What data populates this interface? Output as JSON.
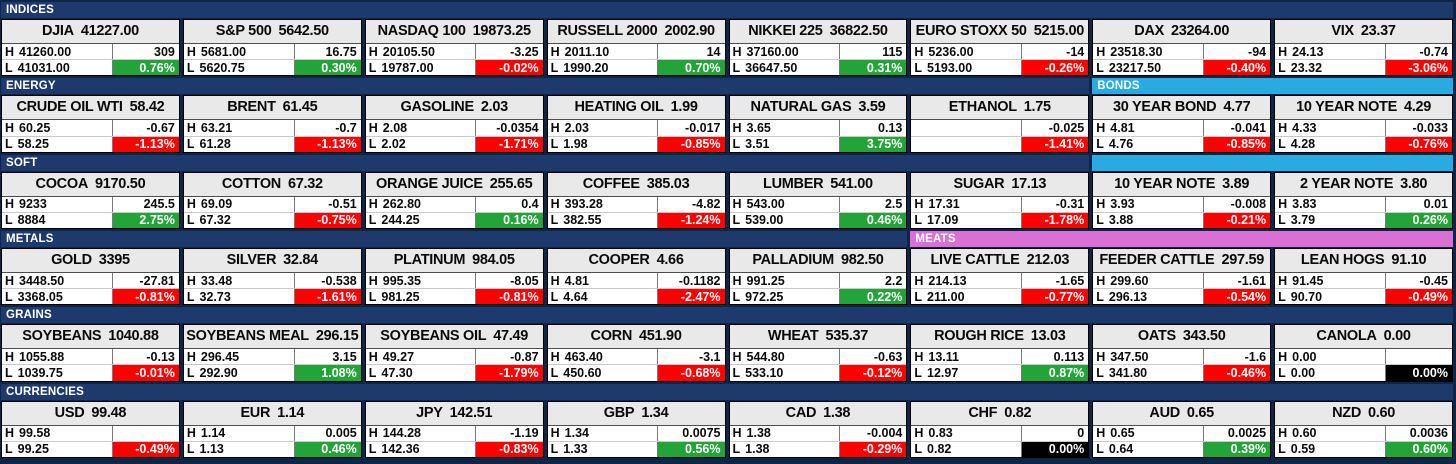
{
  "labels": {
    "high": "H",
    "low": "L"
  },
  "colors": {
    "navy": "#1E3A6D",
    "cyan": "#29ABE2",
    "pink": "#DA6FD6",
    "green": "#23A438",
    "red": "#FE0000",
    "black": "#000000"
  },
  "chart_data": {
    "type": "table",
    "title": "Futures market quote board",
    "columns_per_row": 8,
    "row_fields": [
      "name",
      "last",
      "high",
      "high_change",
      "low",
      "low_change_pct"
    ],
    "sections": [
      {
        "bars": [
          {
            "label": "INDICES",
            "color": "navy",
            "cols": 8
          }
        ],
        "cells": [
          {
            "name": "DJIA",
            "last": "41227.00",
            "high": "41260.00",
            "high_change": "309",
            "low": "41031.00",
            "low_change_pct": "0.76%",
            "pct_color": "green"
          },
          {
            "name": "S&P 500",
            "last": "5642.50",
            "high": "5681.00",
            "high_change": "16.75",
            "low": "5620.75",
            "low_change_pct": "0.30%",
            "pct_color": "green"
          },
          {
            "name": "NASDAQ 100",
            "last": "19873.25",
            "high": "20105.50",
            "high_change": "-3.25",
            "low": "19787.00",
            "low_change_pct": "-0.02%",
            "pct_color": "red"
          },
          {
            "name": "RUSSELL 2000",
            "last": "2002.90",
            "high": "2011.10",
            "high_change": "14",
            "low": "1990.20",
            "low_change_pct": "0.70%",
            "pct_color": "green"
          },
          {
            "name": "NIKKEI 225",
            "last": "36822.50",
            "high": "37160.00",
            "high_change": "115",
            "low": "36647.50",
            "low_change_pct": "0.31%",
            "pct_color": "green"
          },
          {
            "name": "EURO STOXX 50",
            "last": "5215.00",
            "high": "5236.00",
            "high_change": "-14",
            "low": "5193.00",
            "low_change_pct": "-0.26%",
            "pct_color": "red"
          },
          {
            "name": "DAX",
            "last": "23264.00",
            "high": "23518.30",
            "high_change": "-94",
            "low": "23217.50",
            "low_change_pct": "-0.40%",
            "pct_color": "red"
          },
          {
            "name": "VIX",
            "last": "23.37",
            "high": "24.13",
            "high_change": "-0.74",
            "low": "23.32",
            "low_change_pct": "-3.06%",
            "pct_color": "red"
          }
        ]
      },
      {
        "bars": [
          {
            "label": "ENERGY",
            "color": "navy",
            "cols": 6
          },
          {
            "label": "BONDS",
            "color": "cyan",
            "cols": 2
          }
        ],
        "cells": [
          {
            "name": "CRUDE OIL WTI",
            "last": "58.42",
            "high": "60.25",
            "high_change": "-0.67",
            "low": "58.25",
            "low_change_pct": "-1.13%",
            "pct_color": "red"
          },
          {
            "name": "BRENT",
            "last": "61.45",
            "high": "63.21",
            "high_change": "-0.7",
            "low": "61.28",
            "low_change_pct": "-1.13%",
            "pct_color": "red"
          },
          {
            "name": "GASOLINE",
            "last": "2.03",
            "high": "2.08",
            "high_change": "-0.0354",
            "low": "2.02",
            "low_change_pct": "-1.71%",
            "pct_color": "red"
          },
          {
            "name": "HEATING OIL",
            "last": "1.99",
            "high": "2.03",
            "high_change": "-0.017",
            "low": "1.98",
            "low_change_pct": "-0.85%",
            "pct_color": "red"
          },
          {
            "name": "NATURAL GAS",
            "last": "3.59",
            "high": "3.65",
            "high_change": "0.13",
            "low": "3.51",
            "low_change_pct": "3.75%",
            "pct_color": "green"
          },
          {
            "name": "ETHANOL",
            "last": "1.75",
            "high": "",
            "high_change": "-0.025",
            "low": "",
            "low_change_pct": "-1.41%",
            "pct_color": "red"
          },
          {
            "name": "30 YEAR BOND",
            "last": "4.77",
            "high": "4.81",
            "high_change": "-0.041",
            "low": "4.76",
            "low_change_pct": "-0.85%",
            "pct_color": "red"
          },
          {
            "name": "10 YEAR NOTE",
            "last": "4.29",
            "high": "4.33",
            "high_change": "-0.033",
            "low": "4.28",
            "low_change_pct": "-0.76%",
            "pct_color": "red"
          }
        ]
      },
      {
        "bars": [
          {
            "label": "SOFT",
            "color": "navy",
            "cols": 6
          },
          {
            "label": "",
            "color": "cyan",
            "cols": 2
          }
        ],
        "cells": [
          {
            "name": "COCOA",
            "last": "9170.50",
            "high": "9233",
            "high_change": "245.5",
            "low": "8884",
            "low_change_pct": "2.75%",
            "pct_color": "green"
          },
          {
            "name": "COTTON",
            "last": "67.32",
            "high": "69.09",
            "high_change": "-0.51",
            "low": "67.32",
            "low_change_pct": "-0.75%",
            "pct_color": "red"
          },
          {
            "name": "ORANGE JUICE",
            "last": "255.65",
            "high": "262.80",
            "high_change": "0.4",
            "low": "244.25",
            "low_change_pct": "0.16%",
            "pct_color": "green"
          },
          {
            "name": "COFFEE",
            "last": "385.03",
            "high": "393.28",
            "high_change": "-4.82",
            "low": "382.55",
            "low_change_pct": "-1.24%",
            "pct_color": "red"
          },
          {
            "name": "LUMBER",
            "last": "541.00",
            "high": "543.00",
            "high_change": "2.5",
            "low": "539.00",
            "low_change_pct": "0.46%",
            "pct_color": "green"
          },
          {
            "name": "SUGAR",
            "last": "17.13",
            "high": "17.31",
            "high_change": "-0.31",
            "low": "17.09",
            "low_change_pct": "-1.78%",
            "pct_color": "red"
          },
          {
            "name": "10 YEAR NOTE",
            "last": "3.89",
            "high": "3.93",
            "high_change": "-0.008",
            "low": "3.88",
            "low_change_pct": "-0.21%",
            "pct_color": "red"
          },
          {
            "name": "2 YEAR NOTE",
            "last": "3.80",
            "high": "3.83",
            "high_change": "0.01",
            "low": "3.79",
            "low_change_pct": "0.26%",
            "pct_color": "green"
          }
        ]
      },
      {
        "bars": [
          {
            "label": "METALS",
            "color": "navy",
            "cols": 5
          },
          {
            "label": "MEATS",
            "color": "pink",
            "cols": 3
          }
        ],
        "cells": [
          {
            "name": "GOLD",
            "last": "3395",
            "high": "3448.50",
            "high_change": "-27.81",
            "low": "3368.05",
            "low_change_pct": "-0.81%",
            "pct_color": "red"
          },
          {
            "name": "SILVER",
            "last": "32.84",
            "high": "33.48",
            "high_change": "-0.538",
            "low": "32.73",
            "low_change_pct": "-1.61%",
            "pct_color": "red"
          },
          {
            "name": "PLATINUM",
            "last": "984.05",
            "high": "995.35",
            "high_change": "-8.05",
            "low": "981.25",
            "low_change_pct": "-0.81%",
            "pct_color": "red"
          },
          {
            "name": "COOPER",
            "last": "4.66",
            "high": "4.81",
            "high_change": "-0.1182",
            "low": "4.64",
            "low_change_pct": "-2.47%",
            "pct_color": "red"
          },
          {
            "name": "PALLADIUM",
            "last": "982.50",
            "high": "991.25",
            "high_change": "2.2",
            "low": "972.25",
            "low_change_pct": "0.22%",
            "pct_color": "green"
          },
          {
            "name": "LIVE CATTLE",
            "last": "212.03",
            "high": "214.13",
            "high_change": "-1.65",
            "low": "211.00",
            "low_change_pct": "-0.77%",
            "pct_color": "red"
          },
          {
            "name": "FEEDER CATTLE",
            "last": "297.59",
            "high": "299.60",
            "high_change": "-1.61",
            "low": "296.13",
            "low_change_pct": "-0.54%",
            "pct_color": "red"
          },
          {
            "name": "LEAN HOGS",
            "last": "91.10",
            "high": "91.45",
            "high_change": "-0.45",
            "low": "90.70",
            "low_change_pct": "-0.49%",
            "pct_color": "red"
          }
        ]
      },
      {
        "bars": [
          {
            "label": "GRAINS",
            "color": "navy",
            "cols": 8
          }
        ],
        "cells": [
          {
            "name": "SOYBEANS",
            "last": "1040.88",
            "high": "1055.88",
            "high_change": "-0.13",
            "low": "1039.75",
            "low_change_pct": "-0.01%",
            "pct_color": "red"
          },
          {
            "name": "SOYBEANS MEAL",
            "last": "296.15",
            "high": "296.45",
            "high_change": "3.15",
            "low": "292.90",
            "low_change_pct": "1.08%",
            "pct_color": "green"
          },
          {
            "name": "SOYBEANS OIL",
            "last": "47.49",
            "high": "49.27",
            "high_change": "-0.87",
            "low": "47.30",
            "low_change_pct": "-1.79%",
            "pct_color": "red"
          },
          {
            "name": "CORN",
            "last": "451.90",
            "high": "463.40",
            "high_change": "-3.1",
            "low": "450.60",
            "low_change_pct": "-0.68%",
            "pct_color": "red"
          },
          {
            "name": "WHEAT",
            "last": "535.37",
            "high": "544.80",
            "high_change": "-0.63",
            "low": "533.10",
            "low_change_pct": "-0.12%",
            "pct_color": "red"
          },
          {
            "name": "ROUGH RICE",
            "last": "13.03",
            "high": "13.11",
            "high_change": "0.113",
            "low": "12.97",
            "low_change_pct": "0.87%",
            "pct_color": "green"
          },
          {
            "name": "OATS",
            "last": "343.50",
            "high": "347.50",
            "high_change": "-1.6",
            "low": "341.80",
            "low_change_pct": "-0.46%",
            "pct_color": "red"
          },
          {
            "name": "CANOLA",
            "last": "0.00",
            "high": "0.00",
            "high_change": "",
            "low": "0.00",
            "low_change_pct": "0.00%",
            "pct_color": "black"
          }
        ]
      },
      {
        "bars": [
          {
            "label": "CURRENCIES",
            "color": "navy",
            "cols": 8
          }
        ],
        "cells": [
          {
            "name": "USD",
            "last": "99.48",
            "high": "99.58",
            "high_change": "",
            "low": "99.25",
            "low_change_pct": "-0.49%",
            "pct_color": "red"
          },
          {
            "name": "EUR",
            "last": "1.14",
            "high": "1.14",
            "high_change": "0.005",
            "low": "1.13",
            "low_change_pct": "0.46%",
            "pct_color": "green"
          },
          {
            "name": "JPY",
            "last": "142.51",
            "high": "144.28",
            "high_change": "-1.19",
            "low": "142.36",
            "low_change_pct": "-0.83%",
            "pct_color": "red"
          },
          {
            "name": "GBP",
            "last": "1.34",
            "high": "1.34",
            "high_change": "0.0075",
            "low": "1.33",
            "low_change_pct": "0.56%",
            "pct_color": "green"
          },
          {
            "name": "CAD",
            "last": "1.38",
            "high": "1.38",
            "high_change": "-0.004",
            "low": "1.38",
            "low_change_pct": "-0.29%",
            "pct_color": "red"
          },
          {
            "name": "CHF",
            "last": "0.82",
            "high": "0.83",
            "high_change": "0",
            "low": "0.82",
            "low_change_pct": "0.00%",
            "pct_color": "black"
          },
          {
            "name": "AUD",
            "last": "0.65",
            "high": "0.65",
            "high_change": "0.0025",
            "low": "0.64",
            "low_change_pct": "0.39%",
            "pct_color": "green"
          },
          {
            "name": "NZD",
            "last": "0.60",
            "high": "0.60",
            "high_change": "0.0036",
            "low": "0.59",
            "low_change_pct": "0.60%",
            "pct_color": "green"
          }
        ]
      }
    ]
  }
}
